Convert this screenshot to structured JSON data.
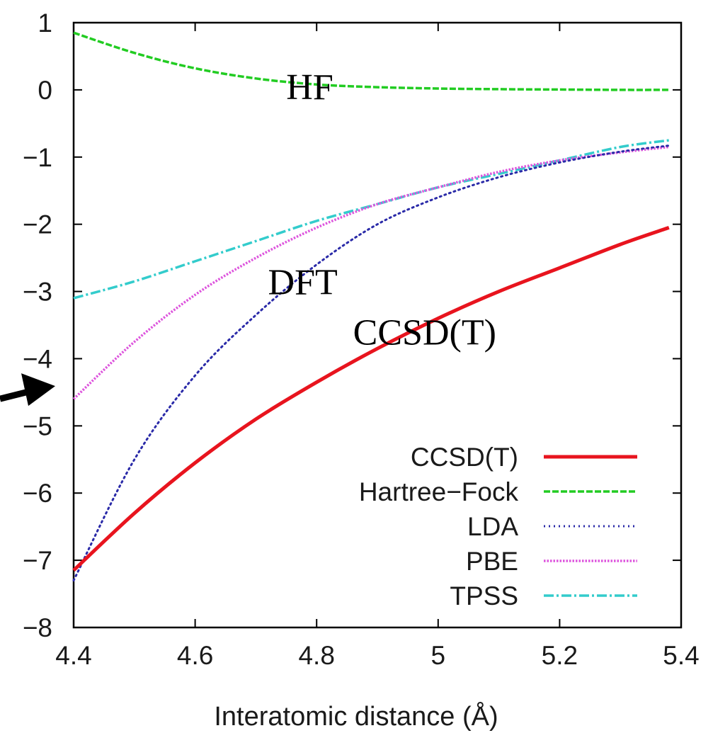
{
  "chart_data": {
    "type": "line",
    "title": "",
    "xlabel": "Interatomic distance (Å)",
    "ylabel": "",
    "xlim": [
      4.4,
      5.4
    ],
    "ylim": [
      -8,
      1
    ],
    "xticks": [
      "4.4",
      "4.6",
      "4.8",
      "5",
      "5.2",
      "5.4"
    ],
    "yticks": [
      "1",
      "0",
      "−1",
      "−2",
      "−3",
      "−4",
      "−5",
      "−6",
      "−7",
      "−8"
    ],
    "grid": false,
    "legend_position": "bottom-right",
    "x": [
      4.4,
      4.5,
      4.6,
      4.7,
      4.8,
      4.9,
      5.0,
      5.1,
      5.2,
      5.3,
      5.38
    ],
    "series": [
      {
        "name": "CCSD(T)",
        "color": "#e8141e",
        "dash": "solid",
        "values": [
          -7.15,
          -6.3,
          -5.55,
          -4.9,
          -4.35,
          -3.85,
          -3.4,
          -3.0,
          -2.65,
          -2.3,
          -2.05
        ]
      },
      {
        "name": "Hartree−Fock",
        "color": "#22cc22",
        "dash": "dashed",
        "values": [
          0.85,
          0.55,
          0.32,
          0.17,
          0.08,
          0.04,
          0.02,
          0.01,
          0.005,
          0.0,
          0.0
        ]
      },
      {
        "name": "LDA",
        "color": "#2a2aa8",
        "dash": "dotted",
        "values": [
          -7.3,
          -5.5,
          -4.25,
          -3.35,
          -2.6,
          -2.0,
          -1.6,
          -1.3,
          -1.08,
          -0.92,
          -0.83
        ]
      },
      {
        "name": "PBE",
        "color": "#dd55dd",
        "dash": "dotted-dense",
        "values": [
          -4.6,
          -3.75,
          -3.05,
          -2.5,
          -2.05,
          -1.7,
          -1.45,
          -1.22,
          -1.05,
          -0.93,
          -0.85
        ]
      },
      {
        "name": "TPSS",
        "color": "#33cccc",
        "dash": "dashdot",
        "values": [
          -3.1,
          -2.85,
          -2.55,
          -2.25,
          -1.95,
          -1.7,
          -1.45,
          -1.25,
          -1.05,
          -0.85,
          -0.75
        ]
      }
    ],
    "annotations": [
      {
        "text": "HF",
        "x": 4.75,
        "y": 0.05
      },
      {
        "text": "DFT",
        "x": 4.72,
        "y": -2.85
      },
      {
        "text": "CCSD(T)",
        "x": 4.86,
        "y": -3.6
      }
    ],
    "arrow": {
      "target_x": 4.4,
      "target_y": -4.45
    }
  }
}
